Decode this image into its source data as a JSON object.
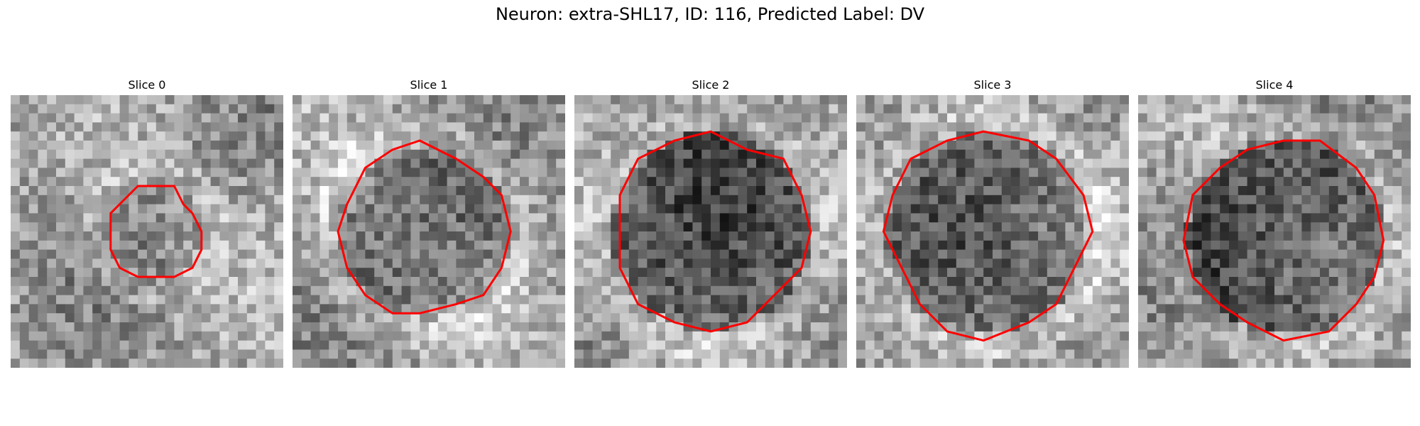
{
  "figure": {
    "suptitle": "Neuron: extra-SHL17, ID: 116, Predicted Label: DV"
  },
  "contour_color": "#ff0000",
  "colormap": "grayscale",
  "slices": [
    {
      "title": "Slice 0",
      "contour_radius": 0.17,
      "center": [
        0.53,
        0.5
      ],
      "dark_blob_level": 0.0,
      "bright_ring_level": 0.55
    },
    {
      "title": "Slice 1",
      "contour_radius": 0.31,
      "center": [
        0.48,
        0.5
      ],
      "dark_blob_level": 0.35,
      "bright_ring_level": 0.75
    },
    {
      "title": "Slice 2",
      "contour_radius": 0.36,
      "center": [
        0.5,
        0.5
      ],
      "dark_blob_level": 0.7,
      "bright_ring_level": 0.55
    },
    {
      "title": "Slice 3",
      "contour_radius": 0.37,
      "center": [
        0.48,
        0.5
      ],
      "dark_blob_level": 0.45,
      "bright_ring_level": 0.7
    },
    {
      "title": "Slice 4",
      "contour_radius": 0.36,
      "center": [
        0.54,
        0.52
      ],
      "dark_blob_level": 0.75,
      "bright_ring_level": 0.45
    }
  ]
}
